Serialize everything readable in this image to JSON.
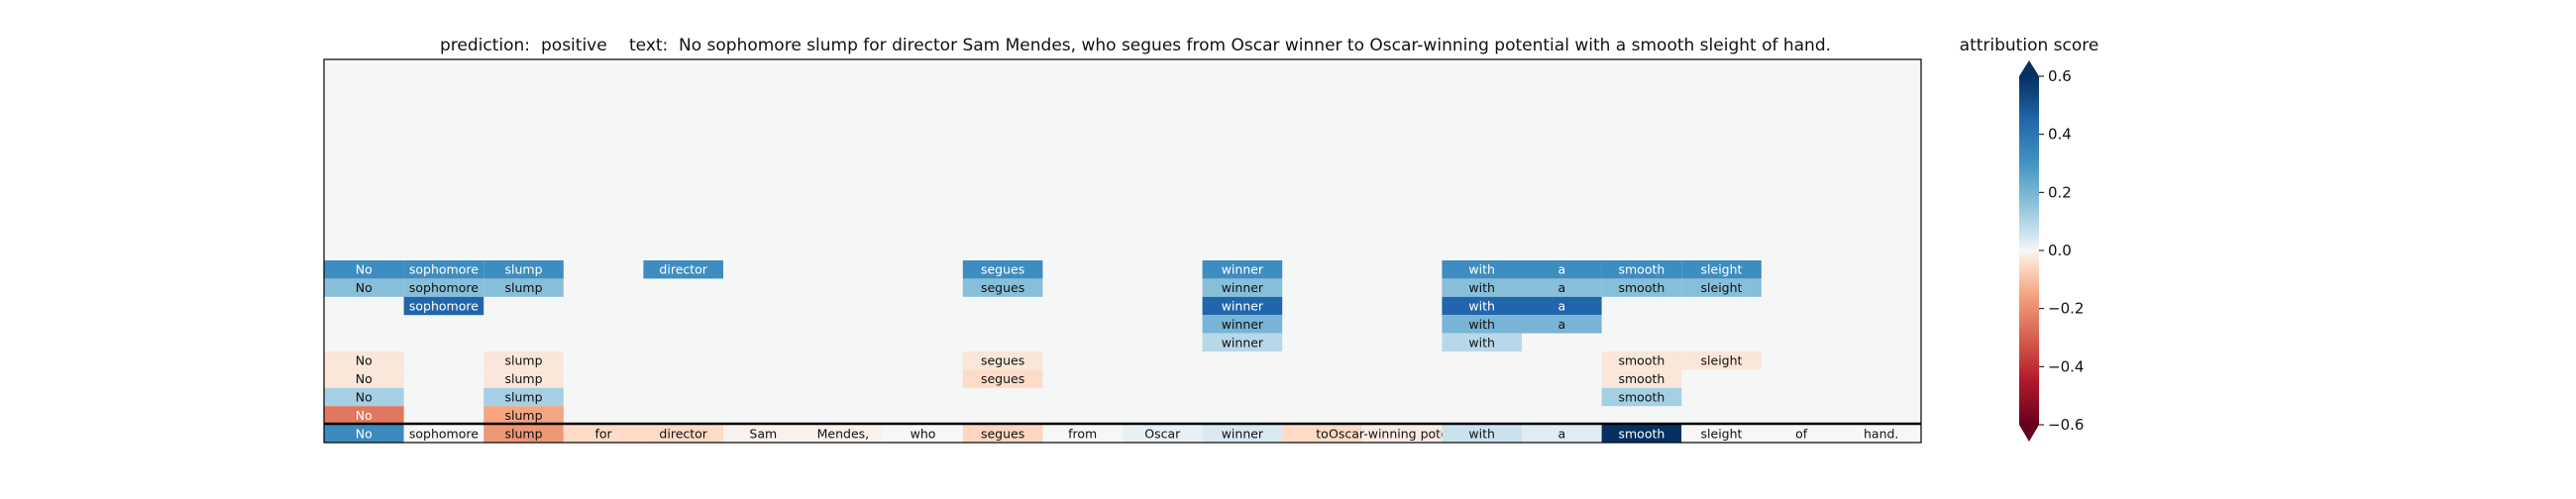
{
  "chart_data": {
    "type": "heatmap",
    "title": {
      "prediction_label": "prediction:",
      "prediction_value": "positive",
      "text_label": "text:",
      "text_value": "No sophomore slump for director Sam Mendes, who segues from Oscar winner to Oscar-winning potential with a smooth sleight of hand."
    },
    "columns": [
      "No",
      "sophomore",
      "slump",
      "for",
      "director",
      "Sam",
      "Mendes,",
      "who",
      "segues",
      "from",
      "Oscar",
      "winner",
      "to",
      "Oscar-winning potential",
      "with",
      "a",
      "smooth",
      "sleight",
      "of",
      "hand."
    ],
    "total_rows": 20,
    "rows": [
      {
        "row": 11,
        "cells": [
          {
            "col": 0,
            "value": 0.32
          },
          {
            "col": 1,
            "value": 0.32
          },
          {
            "col": 2,
            "value": 0.32
          },
          {
            "col": 4,
            "value": 0.32
          },
          {
            "col": 8,
            "value": 0.32
          },
          {
            "col": 11,
            "value": 0.32
          },
          {
            "col": 14,
            "value": 0.32
          },
          {
            "col": 15,
            "value": 0.32
          },
          {
            "col": 16,
            "value": 0.32
          },
          {
            "col": 17,
            "value": 0.32
          }
        ]
      },
      {
        "row": 12,
        "cells": [
          {
            "col": 0,
            "value": 0.17
          },
          {
            "col": 1,
            "value": 0.17
          },
          {
            "col": 2,
            "value": 0.17
          },
          {
            "col": 8,
            "value": 0.17
          },
          {
            "col": 11,
            "value": 0.17
          },
          {
            "col": 14,
            "value": 0.17
          },
          {
            "col": 15,
            "value": 0.17
          },
          {
            "col": 16,
            "value": 0.17
          },
          {
            "col": 17,
            "value": 0.17
          }
        ]
      },
      {
        "row": 13,
        "cells": [
          {
            "col": 1,
            "value": 0.45
          },
          {
            "col": 11,
            "value": 0.45
          },
          {
            "col": 14,
            "value": 0.45
          },
          {
            "col": 15,
            "value": 0.45
          }
        ]
      },
      {
        "row": 14,
        "cells": [
          {
            "col": 11,
            "value": 0.2
          },
          {
            "col": 14,
            "value": 0.2
          },
          {
            "col": 15,
            "value": 0.2
          }
        ]
      },
      {
        "row": 15,
        "cells": [
          {
            "col": 11,
            "value": 0.09
          },
          {
            "col": 14,
            "value": 0.09
          }
        ]
      },
      {
        "row": 16,
        "cells": [
          {
            "col": 0,
            "value": -0.03
          },
          {
            "col": 2,
            "value": -0.03
          },
          {
            "col": 8,
            "value": -0.03
          },
          {
            "col": 16,
            "value": -0.03
          },
          {
            "col": 17,
            "value": -0.03
          }
        ]
      },
      {
        "row": 17,
        "cells": [
          {
            "col": 0,
            "value": -0.03
          },
          {
            "col": 2,
            "value": -0.03
          },
          {
            "col": 8,
            "value": -0.05
          },
          {
            "col": 16,
            "value": -0.03
          }
        ]
      },
      {
        "row": 18,
        "cells": [
          {
            "col": 0,
            "value": 0.12
          },
          {
            "col": 2,
            "value": 0.12
          },
          {
            "col": 16,
            "value": 0.12
          }
        ]
      },
      {
        "row": 19,
        "cells": [
          {
            "col": 0,
            "value": -0.25
          },
          {
            "col": 2,
            "value": -0.15
          }
        ]
      },
      {
        "row": 20,
        "cells": [
          {
            "col": 0,
            "value": 0.33
          },
          {
            "col": 1,
            "value": 0.0
          },
          {
            "col": 2,
            "value": -0.18
          },
          {
            "col": 3,
            "value": -0.05
          },
          {
            "col": 4,
            "value": -0.05
          },
          {
            "col": 5,
            "value": -0.01
          },
          {
            "col": 6,
            "value": -0.01
          },
          {
            "col": 7,
            "value": 0.0
          },
          {
            "col": 8,
            "value": -0.06
          },
          {
            "col": 9,
            "value": 0.0
          },
          {
            "col": 10,
            "value": 0.02
          },
          {
            "col": 11,
            "value": 0.04
          },
          {
            "col": 12,
            "value": -0.05
          },
          {
            "col": 13,
            "value": -0.02
          },
          {
            "col": 14,
            "value": 0.06
          },
          {
            "col": 15,
            "value": 0.03
          },
          {
            "col": 16,
            "value": 0.66
          },
          {
            "col": 17,
            "value": 0.0
          },
          {
            "col": 18,
            "value": 0.0
          },
          {
            "col": 19,
            "value": 0.0
          }
        ]
      }
    ],
    "colorbar": {
      "label": "attribution score",
      "ticks": [
        "0.6",
        "0.4",
        "0.2",
        "0.0",
        "−0.2",
        "−0.4",
        "−0.6"
      ],
      "range": [
        -0.6,
        0.6
      ],
      "colormap": "RdBu"
    },
    "colors": {
      "background": "#f5f6f6",
      "frame": "#000000"
    }
  }
}
